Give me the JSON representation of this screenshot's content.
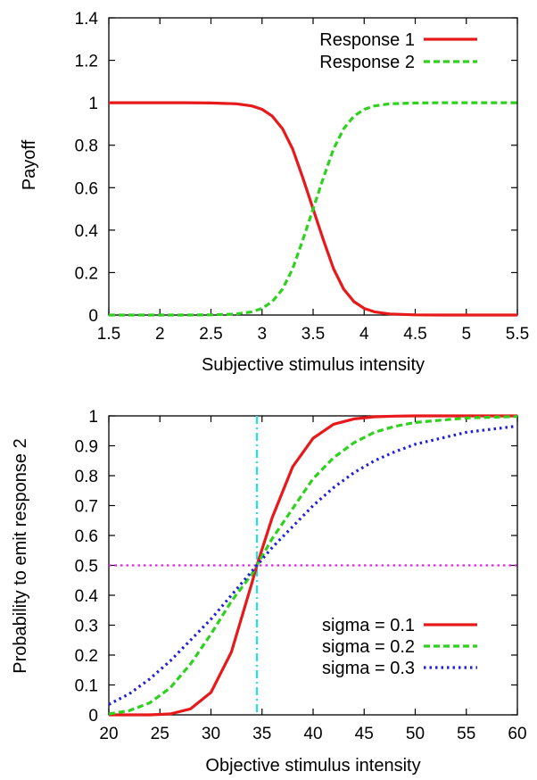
{
  "chart_data": [
    {
      "type": "line",
      "title": "",
      "xlabel": "Subjective stimulus intensity",
      "ylabel": "Payoff",
      "xlim": [
        1.5,
        5.5
      ],
      "ylim": [
        0,
        1.4
      ],
      "xticks": [
        "1.5",
        "2",
        "2.5",
        "3",
        "3.5",
        "4",
        "4.5",
        "5",
        "5.5"
      ],
      "yticks": [
        "0",
        "0.2",
        "0.4",
        "0.6",
        "0.8",
        "1",
        "1.2",
        "1.4"
      ],
      "grid": false,
      "legend_position": "top-right",
      "x": [
        1.5,
        1.75,
        2.0,
        2.25,
        2.5,
        2.75,
        2.9,
        3.0,
        3.1,
        3.2,
        3.3,
        3.4,
        3.5,
        3.6,
        3.7,
        3.8,
        3.9,
        4.0,
        4.1,
        4.25,
        4.5,
        4.75,
        5.0,
        5.25,
        5.5
      ],
      "series": [
        {
          "name": "Response 1",
          "color": "#e8191b",
          "dash": "solid",
          "values": [
            1.0,
            1.0,
            1.0,
            1.0,
            0.999,
            0.995,
            0.985,
            0.969,
            0.937,
            0.878,
            0.782,
            0.646,
            0.5,
            0.354,
            0.218,
            0.122,
            0.063,
            0.031,
            0.015,
            0.005,
            0.001,
            0.0,
            0.0,
            0.0,
            0.0
          ]
        },
        {
          "name": "Response 2",
          "color": "#2fd11f",
          "dash": "dashed",
          "values": [
            0.0,
            0.0,
            0.0,
            0.0,
            0.001,
            0.005,
            0.015,
            0.031,
            0.063,
            0.122,
            0.218,
            0.354,
            0.5,
            0.646,
            0.782,
            0.878,
            0.937,
            0.969,
            0.985,
            0.995,
            0.999,
            1.0,
            1.0,
            1.0,
            1.0
          ]
        }
      ]
    },
    {
      "type": "line",
      "title": "",
      "xlabel": "Objective stimulus intensity",
      "ylabel": "Probability to emit response 2",
      "xlim": [
        20,
        60
      ],
      "ylim": [
        0,
        1
      ],
      "xticks": [
        "20",
        "25",
        "30",
        "35",
        "40",
        "45",
        "50",
        "55",
        "60"
      ],
      "yticks": [
        "0",
        "0.1",
        "0.2",
        "0.3",
        "0.4",
        "0.5",
        "0.6",
        "0.7",
        "0.8",
        "0.9",
        "1"
      ],
      "grid": false,
      "legend_position": "bottom-right",
      "x": [
        20,
        22,
        24,
        26,
        28,
        30,
        32,
        34,
        34.5,
        36,
        38,
        40,
        42,
        44,
        46,
        48,
        50,
        55,
        60
      ],
      "series": [
        {
          "name": "sigma = 0.1",
          "color": "#e8191b",
          "dash": "solid",
          "values": [
            0.0,
            0.0,
            0.0,
            0.003,
            0.02,
            0.075,
            0.21,
            0.44,
            0.5,
            0.66,
            0.83,
            0.925,
            0.972,
            0.99,
            0.997,
            0.999,
            1.0,
            1.0,
            1.0
          ]
        },
        {
          "name": "sigma = 0.2",
          "color": "#2fd11f",
          "dash": "dashed",
          "values": [
            0.003,
            0.014,
            0.04,
            0.09,
            0.17,
            0.27,
            0.38,
            0.47,
            0.5,
            0.59,
            0.69,
            0.79,
            0.86,
            0.91,
            0.945,
            0.965,
            0.978,
            0.993,
            0.998
          ]
        },
        {
          "name": "sigma = 0.3",
          "color": "#1f1fe0",
          "dash": "dotted",
          "values": [
            0.035,
            0.07,
            0.12,
            0.18,
            0.25,
            0.32,
            0.4,
            0.48,
            0.5,
            0.56,
            0.63,
            0.7,
            0.76,
            0.81,
            0.85,
            0.88,
            0.905,
            0.945,
            0.966
          ]
        }
      ],
      "reference_lines": [
        {
          "orientation": "vertical",
          "value": 34.5,
          "color": "#1fe3e3",
          "dash": "dash-dot"
        },
        {
          "orientation": "horizontal",
          "value": 0.5,
          "color": "#e61fe6",
          "dash": "dotted"
        }
      ]
    }
  ]
}
